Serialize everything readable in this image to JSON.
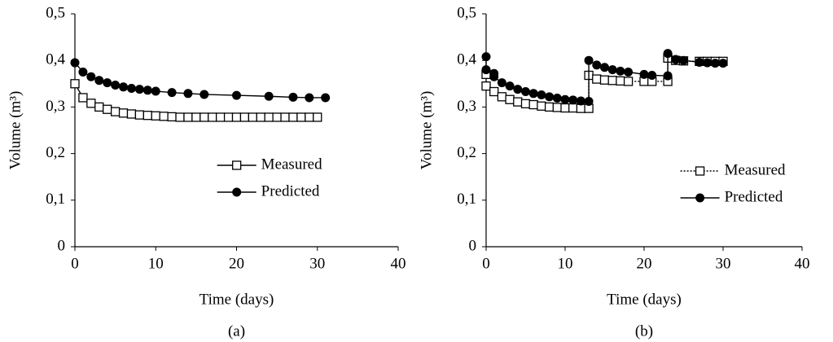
{
  "chart_data": [
    {
      "type": "line",
      "caption": "(a)",
      "xlabel": "Time (days)",
      "ylabel": "Volume (m³)",
      "xlim": [
        0,
        40
      ],
      "xticks": [
        0,
        10,
        20,
        30,
        40
      ],
      "ylim": [
        0,
        0.5
      ],
      "yticks": [
        0,
        {
          "value": 0.1,
          "label": "0,1"
        },
        {
          "value": 0.2,
          "label": "0,2"
        },
        {
          "value": 0.3,
          "label": "0,3"
        },
        {
          "value": 0.4,
          "label": "0,4"
        },
        {
          "value": 0.5,
          "label": "0,5"
        }
      ],
      "legend": "center right",
      "series": [
        {
          "name": "Measured",
          "color": "#000000",
          "marker": "square",
          "dash": "solid",
          "x": [
            0,
            1,
            2,
            3,
            4,
            5,
            6,
            7,
            8,
            9,
            10,
            11,
            12,
            13,
            14,
            15,
            16,
            17,
            18,
            19,
            20,
            21,
            22,
            23,
            24,
            25,
            26,
            27,
            28,
            29,
            30
          ],
          "values": [
            0.35,
            0.32,
            0.308,
            0.3,
            0.295,
            0.29,
            0.287,
            0.285,
            0.283,
            0.282,
            0.281,
            0.28,
            0.279,
            0.278,
            0.278,
            0.278,
            0.278,
            0.278,
            0.278,
            0.278,
            0.278,
            0.278,
            0.278,
            0.278,
            0.278,
            0.278,
            0.278,
            0.278,
            0.278,
            0.278,
            0.278
          ]
        },
        {
          "name": "Predicted",
          "color": "#000000",
          "marker": "circle",
          "dash": "solid",
          "x": [
            0,
            1,
            2,
            3,
            4,
            5,
            6,
            7,
            8,
            9,
            10,
            12,
            14,
            16,
            20,
            24,
            27,
            29,
            31
          ],
          "values": [
            0.395,
            0.375,
            0.365,
            0.357,
            0.352,
            0.347,
            0.343,
            0.34,
            0.338,
            0.336,
            0.334,
            0.331,
            0.329,
            0.327,
            0.325,
            0.323,
            0.321,
            0.32,
            0.32
          ]
        }
      ]
    },
    {
      "type": "line",
      "caption": "(b)",
      "xlabel": "Time (days)",
      "ylabel": "Volume (m³)",
      "xlim": [
        0,
        40
      ],
      "xticks": [
        0,
        10,
        20,
        30,
        40
      ],
      "ylim": [
        0,
        0.5
      ],
      "yticks": [
        0,
        {
          "value": 0.1,
          "label": "0,1"
        },
        {
          "value": 0.2,
          "label": "0,2"
        },
        {
          "value": 0.3,
          "label": "0,3"
        },
        {
          "value": 0.4,
          "label": "0,4"
        },
        {
          "value": 0.5,
          "label": "0,5"
        }
      ],
      "legend": "lower right",
      "series": [
        {
          "name": "Measured",
          "color": "#000000",
          "marker": "square",
          "dash": "dotted",
          "x": [
            0,
            0,
            1,
            2,
            3,
            4,
            5,
            6,
            7,
            8,
            9,
            10,
            11,
            12,
            13,
            13,
            14,
            15,
            16,
            17,
            18,
            20,
            21,
            23,
            23,
            24,
            25,
            27,
            28,
            29,
            30
          ],
          "values": [
            0.37,
            0.345,
            0.333,
            0.322,
            0.316,
            0.311,
            0.307,
            0.305,
            0.302,
            0.3,
            0.299,
            0.298,
            0.298,
            0.297,
            0.297,
            0.368,
            0.36,
            0.358,
            0.357,
            0.356,
            0.355,
            0.355,
            0.355,
            0.355,
            0.405,
            0.4,
            0.399,
            0.398,
            0.398,
            0.398,
            0.398
          ]
        },
        {
          "name": "Predicted",
          "color": "#000000",
          "marker": "circle",
          "dash": "solid",
          "x": [
            0,
            0,
            1,
            1,
            2,
            3,
            4,
            5,
            6,
            7,
            8,
            9,
            10,
            11,
            12,
            13,
            13,
            14,
            15,
            16,
            17,
            18,
            20,
            21,
            23,
            23,
            24,
            25,
            27,
            28,
            29,
            30
          ],
          "values": [
            0.408,
            0.38,
            0.372,
            0.365,
            0.352,
            0.345,
            0.338,
            0.333,
            0.329,
            0.326,
            0.322,
            0.319,
            0.316,
            0.315,
            0.313,
            0.312,
            0.4,
            0.39,
            0.385,
            0.38,
            0.377,
            0.375,
            0.37,
            0.368,
            0.367,
            0.415,
            0.402,
            0.4,
            0.396,
            0.395,
            0.394,
            0.394
          ]
        }
      ]
    }
  ]
}
